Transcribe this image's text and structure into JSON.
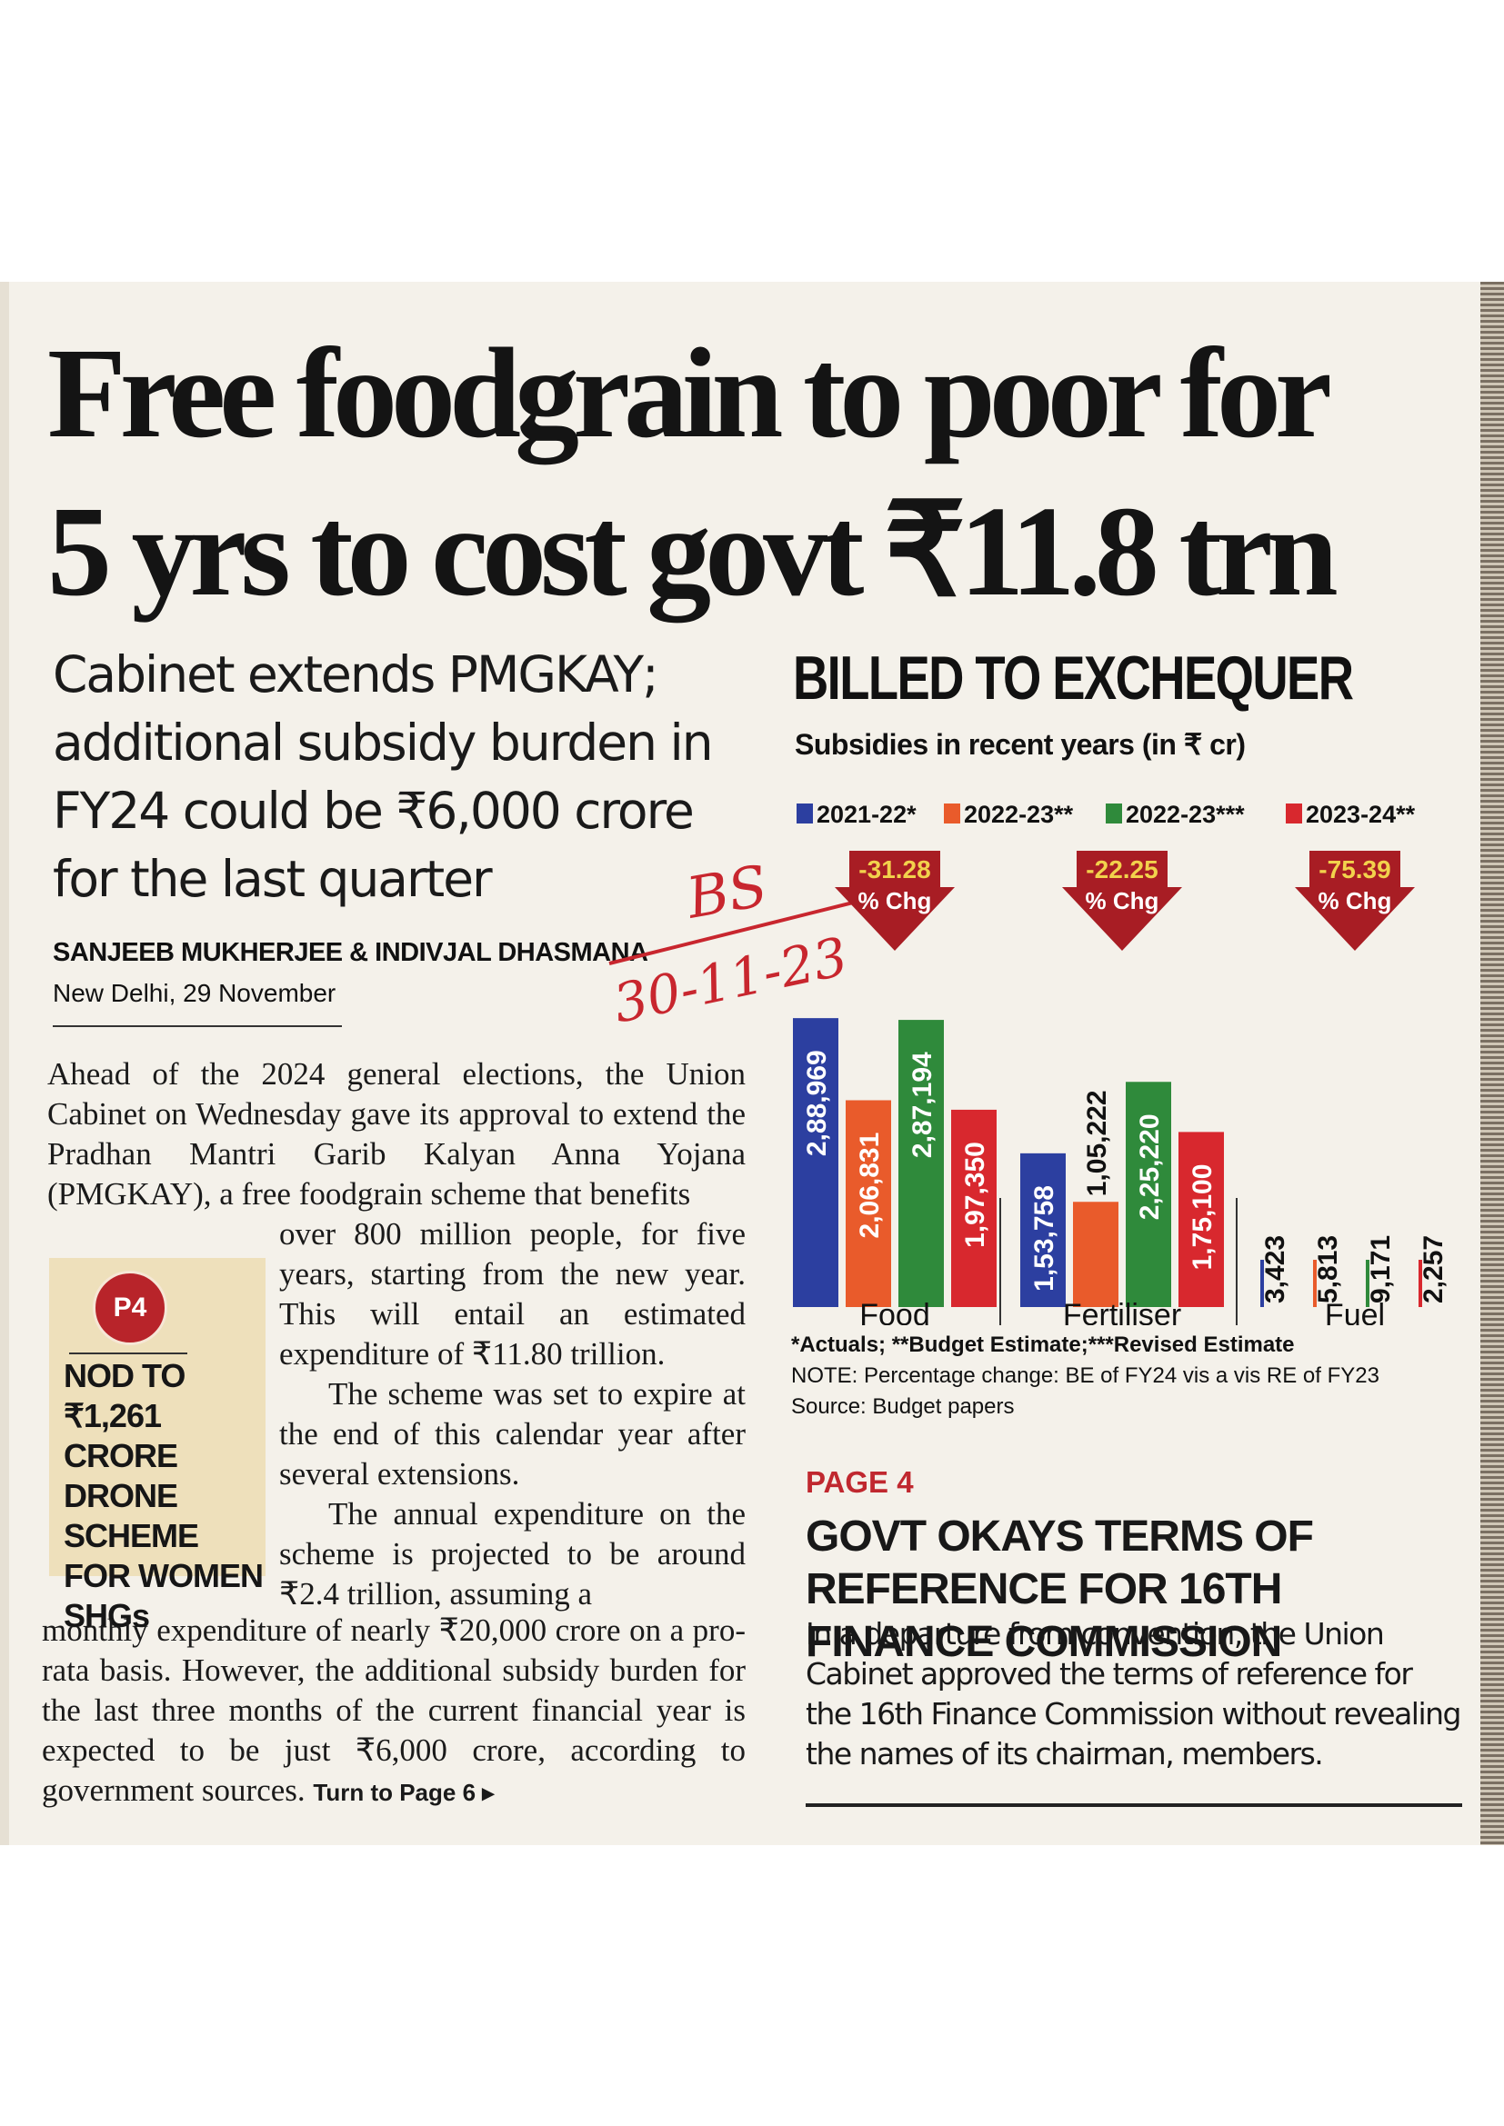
{
  "article": {
    "headline_line1": "Free foodgrain to poor for",
    "headline_line2": "5 yrs to cost govt ₹11.8 trn",
    "deck": "Cabinet extends PMGKAY; additional subsidy burden in FY24 could be ₹6,000 crore for the last quarter",
    "byline": "SANJEEB MUKHERJEE & INDIVJAL DHASMANA",
    "dateline": "New Delhi, 29 November",
    "para1_lead": "Ahead of the 2024 general elections, the Union Cabinet on Wednesday gave its approval to extend the Pradhan Mantri Garib Kalyan Anna Yojana (PMGKAY), a free foodgrain scheme that benefits",
    "para1_cont": "over 800 million people, for five years, starting from the new year. This will entail an estimated expenditure of ₹11.80 trillion.",
    "para2": "The scheme was set to expire at the end of this calendar year after several extensions.",
    "para3_lead": "The annual expenditure on the scheme is projected to be around ₹2.4 trillion, assuming a",
    "para3_cont": "monthly expenditure of nearly ₹20,000 crore on a pro-rata basis. However, the additional subsidy burden for the last three months of the current financial year is expected to be just ₹6,000 crore, according to government sources.",
    "turn_to": "Turn to Page 6 ▸"
  },
  "promo": {
    "pin": "P4",
    "text": "NOD TO ₹1,261 CRORE DRONE SCHEME FOR WOMEN SHGs"
  },
  "handwritten_note": {
    "line1": "BS",
    "line2": "30-11-23"
  },
  "chart_data": {
    "type": "bar",
    "title": "BILLED TO EXCHEQUER",
    "subtitle": "Subsidies in recent years (in ₹ cr)",
    "categories": [
      "Food",
      "Fertiliser",
      "Fuel"
    ],
    "series": [
      {
        "name": "2021-22*",
        "color": "#2c3fa0",
        "values": [
          288969,
          153758,
          3423
        ],
        "labels": [
          "2,88,969",
          "1,53,758",
          "3,423"
        ]
      },
      {
        "name": "2022-23**",
        "color": "#e95b2b",
        "values": [
          206831,
          105222,
          5813
        ],
        "labels": [
          "2,06,831",
          "1,05,222",
          "5,813"
        ]
      },
      {
        "name": "2022-23***",
        "color": "#2f8a3b",
        "values": [
          287194,
          225220,
          9171
        ],
        "labels": [
          "2,87,194",
          "2,25,220",
          "9,171"
        ]
      },
      {
        "name": "2023-24**",
        "color": "#d8282e",
        "values": [
          197350,
          175100,
          2257
        ],
        "labels": [
          "1,97,350",
          "1,75,100",
          "2,257"
        ]
      }
    ],
    "pct_change": [
      {
        "value": "-31.28",
        "unit": "% Chg"
      },
      {
        "value": "-22.25",
        "unit": "% Chg"
      },
      {
        "value": "-75.39",
        "unit": "% Chg"
      }
    ],
    "arrow_color": "#a81d24",
    "notes": [
      "*Actuals; **Budget Estimate;***Revised Estimate",
      "NOTE: Percentage change: BE of FY24 vis a vis RE of FY23",
      "Source: Budget papers"
    ]
  },
  "page4": {
    "tag": "PAGE 4",
    "title": "GOVT OKAYS TERMS OF REFERENCE FOR 16TH FINANCE COMMISSION",
    "text": "In a departure from convention, the Union Cabinet approved the terms of reference for the 16th Finance Commission without revealing the names of its chairman, members."
  }
}
